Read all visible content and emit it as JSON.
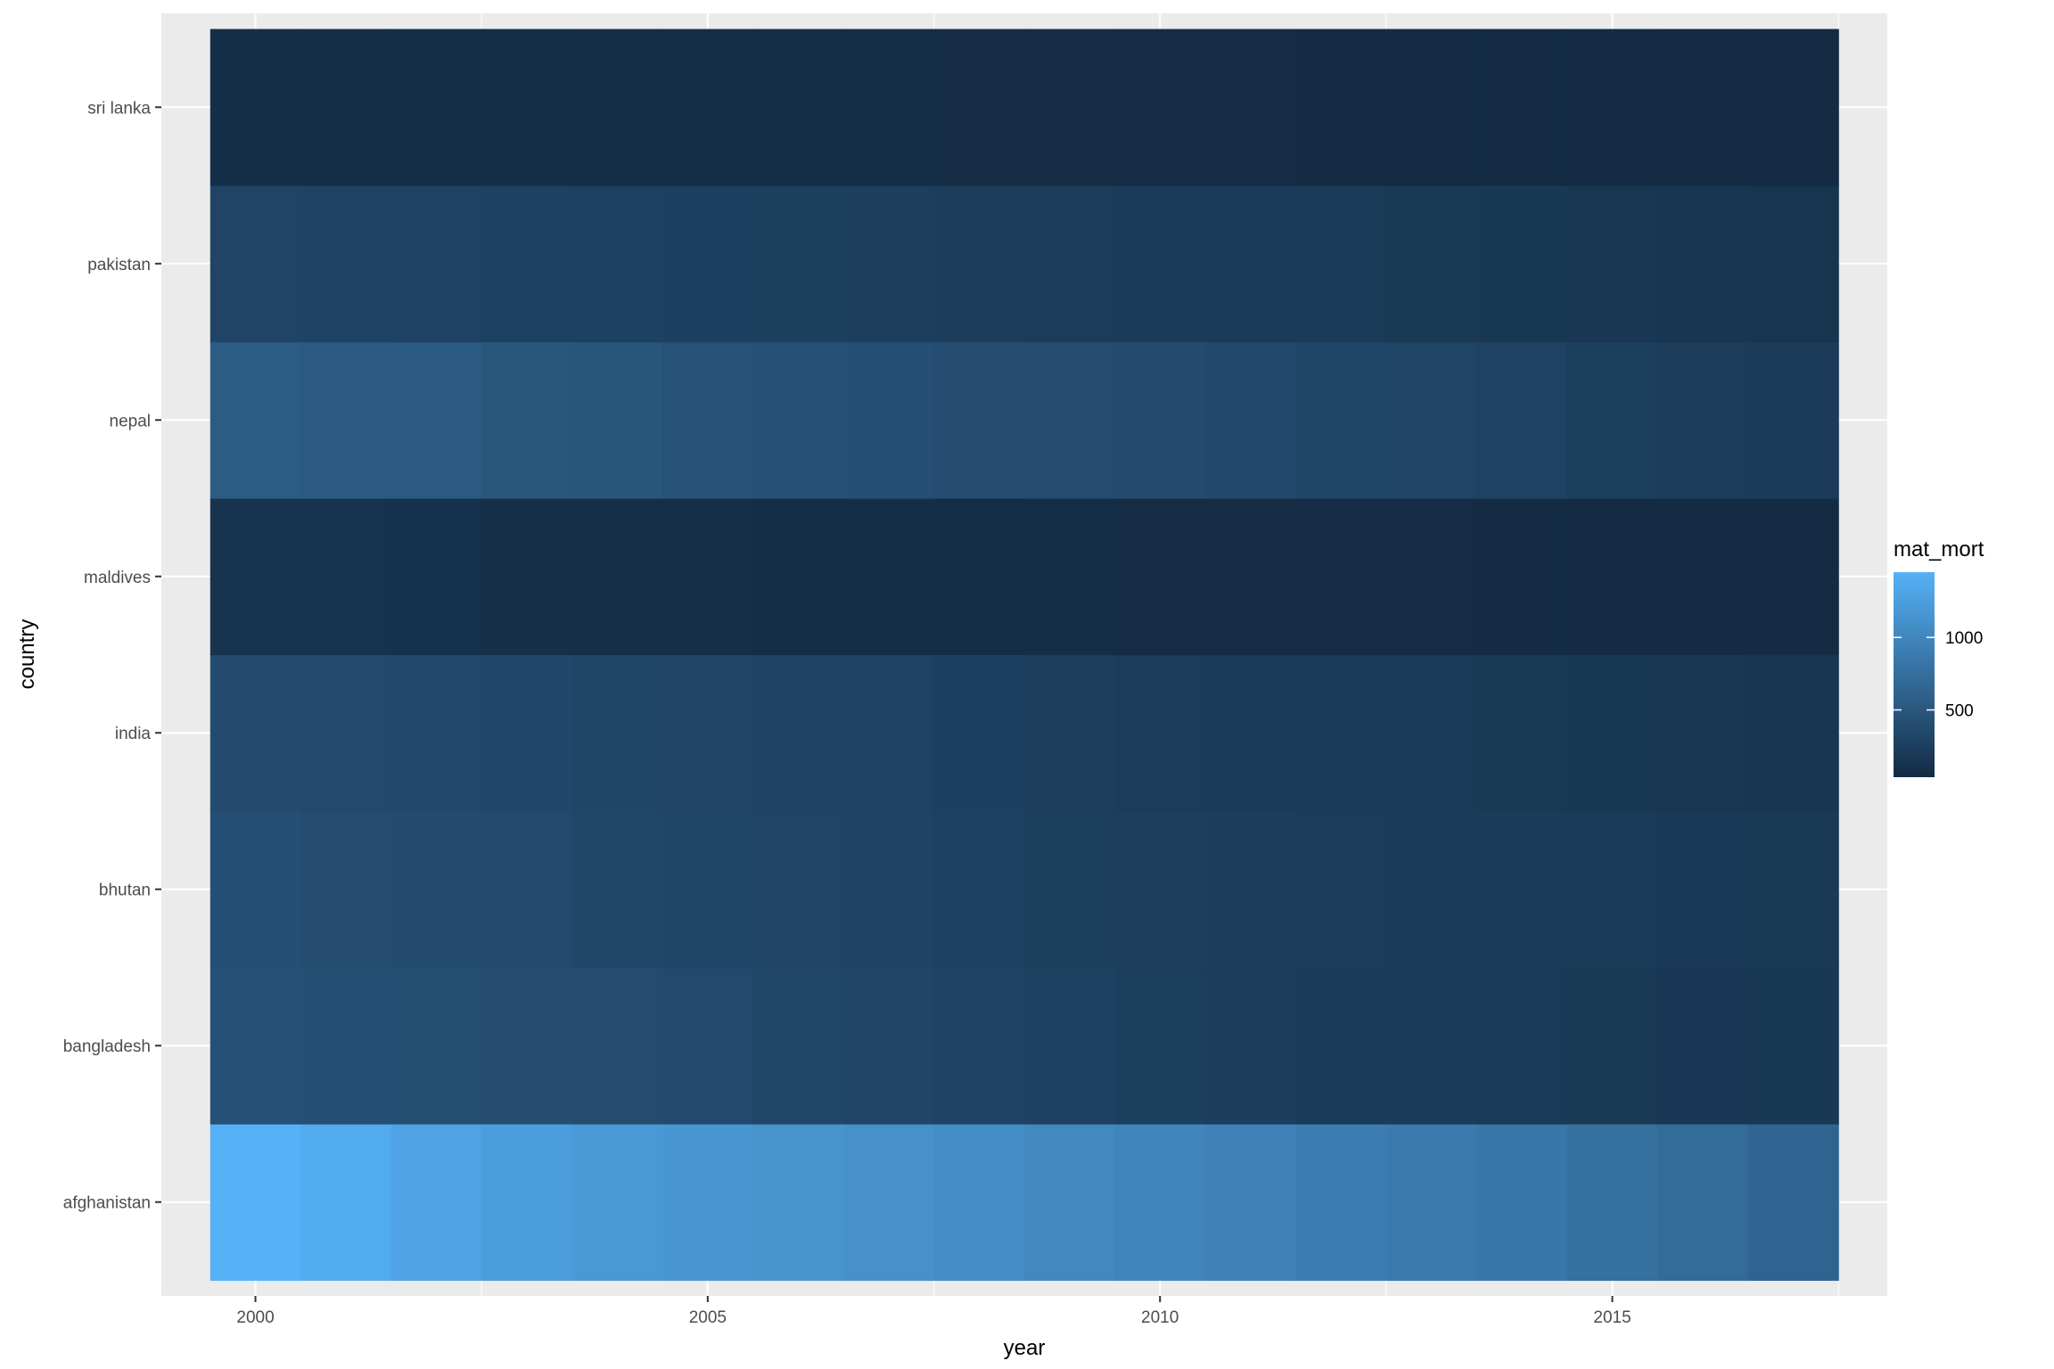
{
  "chart_data": {
    "type": "heatmap",
    "title": "",
    "xlabel": "year",
    "ylabel": "country",
    "x": [
      2000,
      2001,
      2002,
      2003,
      2004,
      2005,
      2006,
      2007,
      2008,
      2009,
      2010,
      2011,
      2012,
      2013,
      2014,
      2015,
      2016,
      2017
    ],
    "x_ticks": [
      "2000",
      "2005",
      "2010",
      "2015"
    ],
    "xlim": [
      1998.96,
      2018.04
    ],
    "categories": [
      "afghanistan",
      "bangladesh",
      "bhutan",
      "india",
      "maldives",
      "nepal",
      "pakistan",
      "sri lanka"
    ],
    "series": [
      {
        "name": "afghanistan",
        "values": [
          1450,
          1390,
          1300,
          1240,
          1200,
          1160,
          1130,
          1110,
          1070,
          1030,
          990,
          950,
          900,
          870,
          840,
          760,
          710,
          640
        ]
      },
      {
        "name": "bangladesh",
        "values": [
          430,
          420,
          410,
          400,
          380,
          360,
          330,
          310,
          290,
          270,
          250,
          230,
          210,
          200,
          190,
          180,
          175,
          170
        ]
      },
      {
        "name": "bhutan",
        "values": [
          420,
          380,
          370,
          360,
          330,
          320,
          300,
          290,
          270,
          250,
          240,
          230,
          220,
          210,
          200,
          190,
          185,
          180
        ]
      },
      {
        "name": "india",
        "values": [
          370,
          360,
          350,
          340,
          320,
          310,
          290,
          280,
          260,
          240,
          220,
          210,
          200,
          190,
          180,
          170,
          160,
          150
        ]
      },
      {
        "name": "maldives",
        "values": [
          120,
          110,
          100,
          90,
          80,
          75,
          70,
          66,
          62,
          58,
          55,
          52,
          50,
          48,
          46,
          44,
          43,
          42
        ]
      },
      {
        "name": "nepal",
        "values": [
          550,
          530,
          530,
          490,
          480,
          450,
          440,
          420,
          400,
          380,
          370,
          350,
          320,
          300,
          280,
          250,
          220,
          200
        ]
      },
      {
        "name": "pakistan",
        "values": [
          300,
          290,
          280,
          270,
          270,
          260,
          250,
          240,
          230,
          220,
          210,
          200,
          190,
          180,
          170,
          160,
          150,
          140
        ]
      },
      {
        "name": "sri lanka",
        "values": [
          70,
          68,
          66,
          64,
          62,
          60,
          58,
          56,
          54,
          52,
          50,
          48,
          46,
          44,
          42,
          40,
          38,
          36
        ]
      }
    ],
    "legend": {
      "title": "mat_mort",
      "position": "right",
      "breaks": [
        500,
        1000
      ],
      "labels": [
        "500",
        "1000"
      ],
      "range": [
        36,
        1450
      ],
      "low_color": "#132B43",
      "high_color": "#56B1F7"
    },
    "grid": true,
    "panel_background": "#EBEBEB",
    "gridline_color": "#FFFFFF"
  }
}
